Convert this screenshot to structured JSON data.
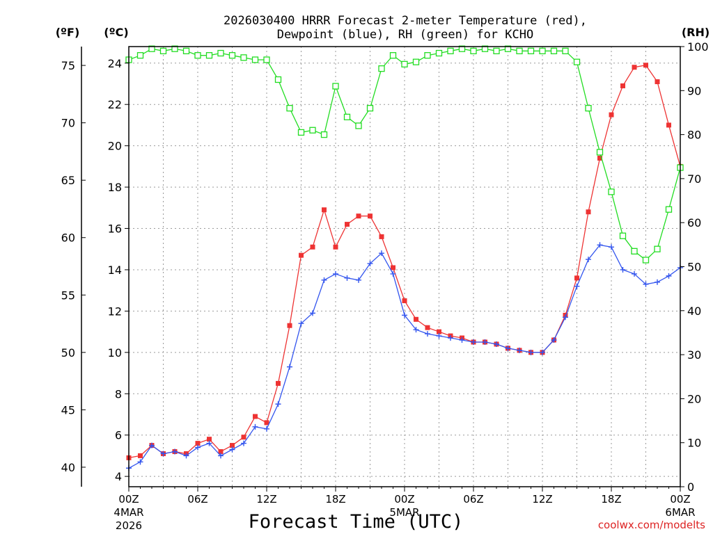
{
  "chart_data": {
    "type": "line",
    "title_line1": "2026030400 HRRR Forecast 2-meter Temperature (red),",
    "title_line2": "Dewpoint (blue), RH (green) for KCHO",
    "xlabel": "Forecast Time (UTC)",
    "credit": "coolwx.com/modelts",
    "unit_labels": {
      "fahrenheit": "(ºF)",
      "celsius": "(ºC)",
      "rh": "(RH)"
    },
    "xlim": [
      0,
      48
    ],
    "ylim_c": [
      3.5,
      24.8
    ],
    "ylim_rh": [
      0,
      100
    ],
    "x_ticks": [
      {
        "x": 0,
        "l1": "00Z",
        "l2": "4MAR",
        "l3": "2026"
      },
      {
        "x": 6,
        "l1": "06Z",
        "l2": "",
        "l3": ""
      },
      {
        "x": 12,
        "l1": "12Z",
        "l2": "",
        "l3": ""
      },
      {
        "x": 18,
        "l1": "18Z",
        "l2": "",
        "l3": ""
      },
      {
        "x": 24,
        "l1": "00Z",
        "l2": "5MAR",
        "l3": ""
      },
      {
        "x": 30,
        "l1": "06Z",
        "l2": "",
        "l3": ""
      },
      {
        "x": 36,
        "l1": "12Z",
        "l2": "",
        "l3": ""
      },
      {
        "x": 42,
        "l1": "18Z",
        "l2": "",
        "l3": ""
      },
      {
        "x": 48,
        "l1": "00Z",
        "l2": "6MAR",
        "l3": ""
      }
    ],
    "celsius_ticks": [
      4,
      6,
      8,
      10,
      12,
      14,
      16,
      18,
      20,
      22,
      24
    ],
    "fahrenheit_ticks": [
      40,
      45,
      50,
      55,
      60,
      65,
      70,
      75
    ],
    "rh_ticks": [
      0,
      10,
      20,
      30,
      40,
      50,
      60,
      70,
      80,
      90,
      100
    ],
    "series": [
      {
        "name": "Temperature",
        "unit": "C",
        "color": "#ee3333",
        "marker": "square-filled",
        "values": [
          4.9,
          5.0,
          5.5,
          5.1,
          5.2,
          5.1,
          5.6,
          5.8,
          5.2,
          5.5,
          5.9,
          6.9,
          6.6,
          8.5,
          11.3,
          14.7,
          15.1,
          16.9,
          15.1,
          16.2,
          16.6,
          16.6,
          15.6,
          14.1,
          12.5,
          11.6,
          11.2,
          11.0,
          10.8,
          10.7,
          10.5,
          10.5,
          10.4,
          10.2,
          10.1,
          10.0,
          10.0,
          10.6,
          11.8,
          13.6,
          16.8,
          19.4,
          21.5,
          22.9,
          23.8,
          23.9,
          23.1,
          21.0,
          19.0
        ]
      },
      {
        "name": "Dewpoint",
        "unit": "C",
        "color": "#3355ee",
        "marker": "plus",
        "values": [
          4.4,
          4.7,
          5.5,
          5.1,
          5.2,
          5.0,
          5.4,
          5.6,
          5.0,
          5.3,
          5.6,
          6.4,
          6.3,
          7.5,
          9.3,
          11.4,
          11.9,
          13.5,
          13.8,
          13.6,
          13.5,
          14.3,
          14.8,
          13.8,
          11.8,
          11.1,
          10.9,
          10.8,
          10.7,
          10.6,
          10.5,
          10.5,
          10.4,
          10.2,
          10.1,
          10.0,
          10.0,
          10.6,
          11.7,
          13.2,
          14.5,
          15.2,
          15.1,
          14.0,
          13.8,
          13.3,
          13.4,
          13.7,
          14.1
        ]
      },
      {
        "name": "RH",
        "unit": "%",
        "color": "#22dd22",
        "marker": "square-open",
        "values": [
          97,
          98,
          99.5,
          99,
          99.5,
          99,
          98,
          98,
          98.5,
          98,
          97.5,
          97,
          97,
          92.5,
          86,
          80.5,
          81,
          80,
          91,
          84,
          82,
          86,
          95,
          98,
          96,
          96.5,
          98,
          98.5,
          99,
          99.5,
          99,
          99.5,
          99,
          99.5,
          99,
          99,
          99,
          99,
          99,
          96.5,
          86,
          76,
          67,
          57,
          53.5,
          51.5,
          54,
          63,
          72.5
        ]
      }
    ]
  }
}
